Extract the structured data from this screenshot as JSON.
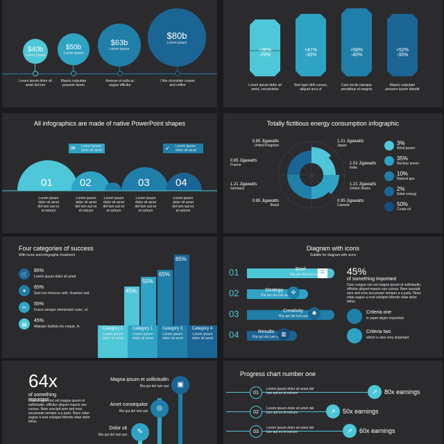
{
  "slide1": {
    "circles": [
      {
        "value": "$40b",
        "sub": "Lorem ipsum",
        "desc": "Lorem ipsum dolor sit amet dol lum"
      },
      {
        "value": "$50b",
        "sub": "Lorem ipsum",
        "desc": "Mauris vulputate posuere lorem"
      },
      {
        "value": "$63b",
        "sub": "Lorem ipsum",
        "desc": "Aenean ut nulla ac augue efficitur"
      },
      {
        "value": "$80b",
        "sub": "Lorem ipsum",
        "desc": "I like chocolate crepes and coffee"
      }
    ]
  },
  "slide2": {
    "columns": [
      {
        "up": "+36%",
        "down": "-29%",
        "desc": "Lorem ipsum dolor sit amet, consectetur"
      },
      {
        "up": "+47%",
        "down": "-33%",
        "desc": "Sed eget nibh cursus, aliquet arcu ut"
      },
      {
        "up": "+58%",
        "down": "-40%",
        "desc": "Cum sociis natoque penatibus et magnis"
      },
      {
        "up": "+52%",
        "down": "-35%",
        "desc": "Mauris vulputate posuere ipsum blandit"
      }
    ]
  },
  "slide3": {
    "title": "All infographics are made of native PowerPoint shapes",
    "callout1": "Lorem ipsum dolor sit amet",
    "callout2": "Lorem ipsum dolor sit amet",
    "items": [
      {
        "num": "01",
        "desc": "Lorem ipsum dolor sit amet del lum aut ex et estrum"
      },
      {
        "num": "02",
        "desc": "Lorem ipsum dolor sit amet del lum aut ex et estrum"
      },
      {
        "num": "",
        "desc": "Lorem ipsum dolor sit amet del lum aut ex et estrum"
      },
      {
        "num": "03",
        "desc": "Lorem ipsum dolor sit amet del lum aut ex et estrum"
      },
      {
        "num": "04",
        "desc": "Lorem ipsum dolor sit amet del lum aut ex et estrum"
      }
    ]
  },
  "slide4": {
    "title": "Totally fictitious energy consumption infographic",
    "left_labels": [
      {
        "value": "0.85 Jigawatts",
        "country": "United Kingdom"
      },
      {
        "value": "0.85 Jigawatts",
        "country": "France"
      },
      {
        "value": "1.21 Jigawatts",
        "country": "Germany"
      },
      {
        "value": "0.85 Jigawatts",
        "country": "Brazil"
      }
    ],
    "right_labels": [
      {
        "value": "1.21 Jigawatts",
        "country": "Japan"
      },
      {
        "value": "1.01 Jigawatts",
        "country": "India"
      },
      {
        "value": "1.21 Jigawatts",
        "country": "United States"
      },
      {
        "value": "0.95 Jigawatts",
        "country": "Canada"
      }
    ],
    "legend": [
      {
        "pct": "3%",
        "label": "Wind power",
        "color": "#4ec7d8"
      },
      {
        "pct": "35%",
        "label": "Nuclear power",
        "color": "#2fa3c4"
      },
      {
        "pct": "10%",
        "label": "Natural gas",
        "color": "#1f7fa8"
      },
      {
        "pct": "2%",
        "label": "Solar energy",
        "color": "#1b6595"
      },
      {
        "pct": "50%",
        "label": "Crude oil",
        "color": "#154e7c"
      }
    ]
  },
  "slide5": {
    "title": "Four categories of success",
    "subtitle": "With icons and infographic treatment",
    "items": [
      {
        "pct": "85%",
        "desc": "Lorem ipsum dolor sit amet"
      },
      {
        "pct": "65%",
        "desc": "Sed non rhoncus velit. Vivamus sed"
      },
      {
        "pct": "55%",
        "desc": "Fusce semper elementum nunc, ut"
      },
      {
        "pct": "45%",
        "desc": "Aliquam facilisis leo neque, in"
      }
    ],
    "bars": [
      {
        "pct": "45%",
        "cat": "Category 1",
        "sub": "Lorem ipsum dolor sit amet"
      },
      {
        "pct": "55%",
        "cat": "Category 1",
        "sub": "Lorem ipsum dolor sit amet"
      },
      {
        "pct": "65%",
        "cat": "Category 3",
        "sub": "Lorem ipsum dolor sit amet"
      },
      {
        "pct": "85%",
        "cat": "Category 4",
        "sub": "Lorem ipsum dolor sit amet"
      }
    ]
  },
  "slide6": {
    "title": "Diagram with icons",
    "subtitle": "Subtitle for diagram with icons",
    "rows": [
      {
        "num": "01",
        "label": "Brief",
        "sub": "Ria qui del lum aut"
      },
      {
        "num": "02",
        "label": "Strategy",
        "sub": "Ria qui del lum aut"
      },
      {
        "num": "03",
        "label": "Creativity",
        "sub": "Ria qui del lum aut"
      },
      {
        "num": "04",
        "label": "Results",
        "sub": "Ria qui del lum aut"
      }
    ],
    "stat": "45%",
    "stat_label": "of something important",
    "stat_desc": "Duis congue nisl vel magna ipsum et sollicitudin, efficitur aliquet mauris oso cursus. Nam suscipit sem sed eros accumsan semper a a justo. Nunc vitae augue a erat volutpat lobortis vitae dolor tellus.",
    "criteria": [
      {
        "title": "Criteria one",
        "desc": "is super duper important"
      },
      {
        "title": "Criteria two",
        "desc": "which is also very important"
      }
    ]
  },
  "slide7": {
    "stat": "64x",
    "stat_label": "of something important",
    "stat_desc": "Duis congue nisl vel magna ipsum et sollicitudin, efficitur aliquet mauris oso cursus. Nam suscipit sem sed eros accumsan semper a a justo. Nunc vitae augue a erat volutpat lobortis vitae dolor tellus.",
    "items": [
      {
        "label": "Magna ipsum et sollicitudin",
        "sub": "Ria qui del lum aut"
      },
      {
        "label": "Amet consequitor",
        "sub": "Ria qui del lum aut"
      },
      {
        "label": "Dolor sit",
        "sub": "Ria qui del lum aut"
      }
    ]
  },
  "slide8": {
    "title": "Progress chart number one",
    "rows": [
      {
        "num": "01",
        "text": "Lorem ipsum dolor sit amet del lum aut ex et estrum",
        "value": "80x earnings",
        "level": 0.85
      },
      {
        "num": "02",
        "text": "Lorem ipsum dolor sit amet del lum aut ex et estrum",
        "value": "50x earnings",
        "level": 0.6
      },
      {
        "num": "03",
        "text": "Lorem ipsum dolor sit amet del lum aut ex et estrum",
        "value": "60x earnings",
        "level": 0.7
      }
    ]
  }
}
